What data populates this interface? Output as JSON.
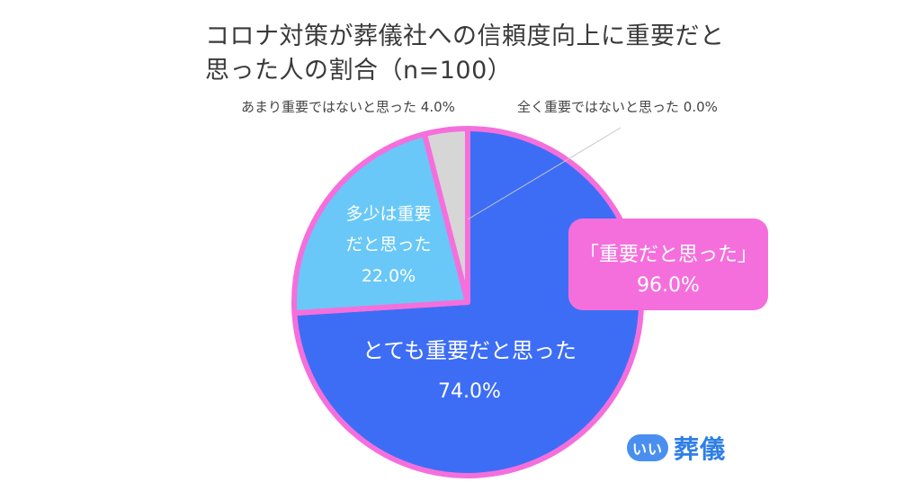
{
  "title": {
    "line1": "コロナ対策が葬儀社への信頼度向上に重要だと",
    "line2": "思った人の割合（n=100）"
  },
  "logo": {
    "badge": "いい",
    "text": "葬儀"
  },
  "chart_data": {
    "type": "pie",
    "start_angle_deg": 0,
    "direction": "clockwise",
    "slices": [
      {
        "label": "とても重要だと思った",
        "value": 74.0,
        "display": "74.0%",
        "color": "#3d6df5"
      },
      {
        "label": "多少は重要だと思った",
        "value": 22.0,
        "display": "22.0%",
        "color": "#69c8f7"
      },
      {
        "label": "あまり重要ではないと思った",
        "value": 4.0,
        "display": "4.0%",
        "color": "#d6d6d6"
      },
      {
        "label": "全く重要ではないと思った",
        "value": 0.0,
        "display": "0.0%",
        "color": "#bcbcbc"
      }
    ],
    "slice_text": {
      "s0_line1": "とても重要だと思った",
      "s0_line2": "74.0%",
      "s1_line1": "多少は重要",
      "s1_line2": "だと思った",
      "s1_line3": "22.0%"
    },
    "outside_labels": {
      "s2": "あまり重要ではないと思った 4.0%",
      "s3": "全く重要ではないと思った 0.0%"
    },
    "callout": {
      "line1": "「重要だと思った」",
      "line2": "96.0%",
      "color": "#f56fdc"
    },
    "outline_color": "#f56fdc"
  }
}
